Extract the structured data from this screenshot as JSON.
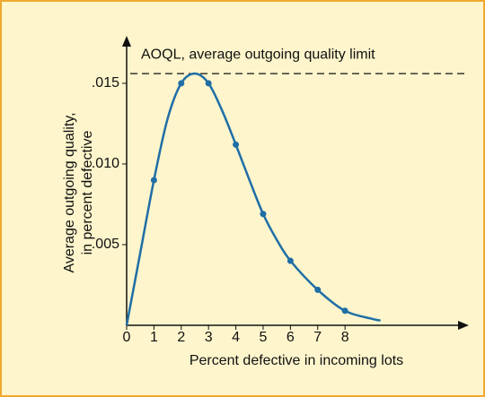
{
  "chart_data": {
    "type": "line",
    "xlabel": "Percent defective in incoming lots",
    "ylabel": [
      "Average outgoing quality,",
      "in percent defective"
    ],
    "xlim": [
      0,
      12.47
    ],
    "ylim": [
      0,
      0.01783
    ],
    "xticks": [
      0,
      1,
      2,
      3,
      4,
      5,
      6,
      7,
      8
    ],
    "yticks": [
      {
        "value": 0.005,
        "label": ".005"
      },
      {
        "value": 0.01,
        "label": ".010"
      },
      {
        "value": 0.015,
        "label": ".015"
      }
    ],
    "grid": false,
    "aoql": {
      "label": "AOQL, average outgoing quality limit",
      "value": 0.0156
    },
    "series": [
      {
        "color": "#1f6ea6",
        "style": "curve",
        "x": [
          0,
          0.5,
          1,
          1.5,
          2,
          2.5,
          3,
          3.5,
          4,
          4.5,
          5,
          5.5,
          6,
          7,
          8,
          9,
          9.3
        ],
        "values": [
          0,
          0.0045,
          0.009,
          0.0128,
          0.015,
          0.0156,
          0.015,
          0.0133,
          0.0112,
          0.009,
          0.0069,
          0.0053,
          0.004,
          0.0022,
          0.0009,
          0.0004,
          0.0003
        ]
      },
      {
        "color": "#1f6ea6",
        "style": "points",
        "x": [
          1,
          2,
          3,
          4,
          5,
          6,
          7,
          8
        ],
        "values": [
          0.009,
          0.015,
          0.015,
          0.0112,
          0.0069,
          0.004,
          0.0022,
          0.0009
        ]
      }
    ]
  }
}
